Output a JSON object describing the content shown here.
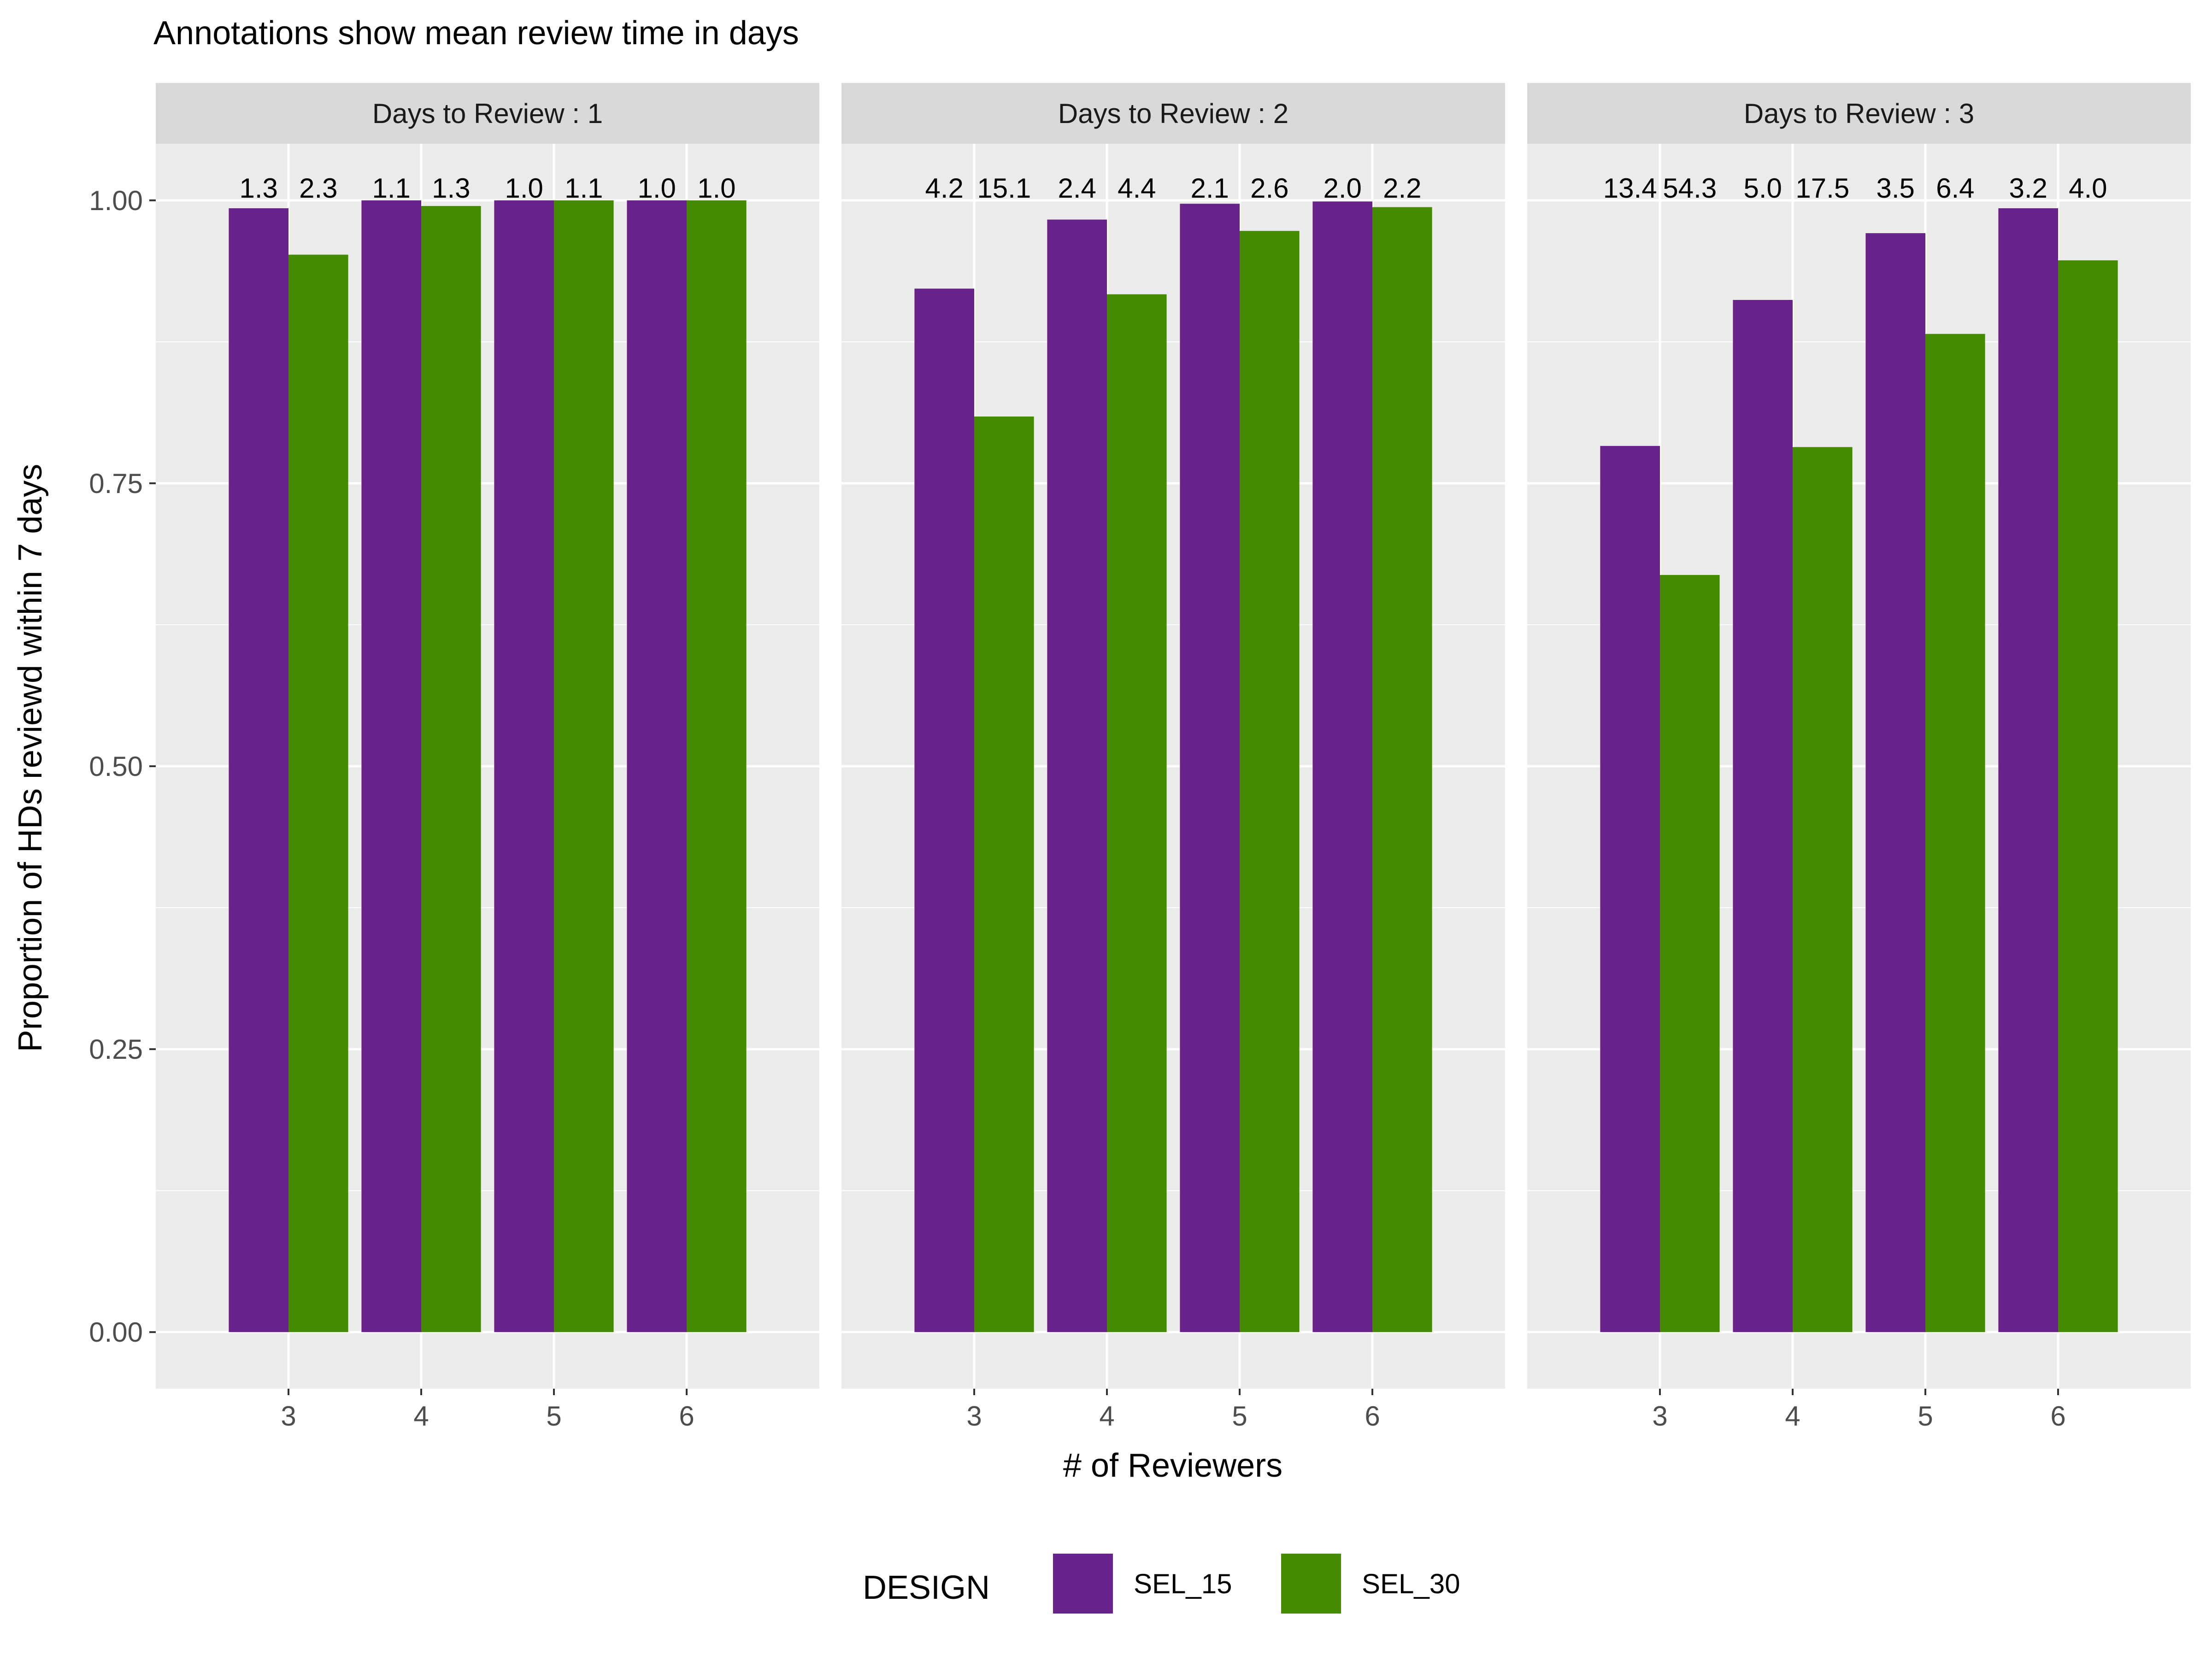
{
  "chart_data": {
    "type": "bar",
    "title": "Annotations show mean review time in days",
    "xlabel": "# of Reviewers",
    "ylabel": "Proportion of HDs reviewd within 7 days",
    "ylim": [
      -0.05,
      1.05
    ],
    "yticks": [
      0.0,
      0.25,
      0.5,
      0.75,
      1.0
    ],
    "ytick_labels": [
      "0.00",
      "0.25",
      "0.50",
      "0.75",
      "1.00"
    ],
    "categories": [
      "3",
      "4",
      "5",
      "6"
    ],
    "legend": {
      "title": "DESIGN",
      "position": "bottom",
      "entries": [
        {
          "name": "SEL_15",
          "color": "#68228b"
        },
        {
          "name": "SEL_30",
          "color": "#458b00"
        }
      ]
    },
    "panels": [
      {
        "strip": "Days to Review : 1",
        "series": [
          {
            "name": "SEL_15",
            "values": [
              0.993,
              1.0,
              1.0,
              1.0
            ],
            "annotations": [
              "1.3",
              "1.1",
              "1.0",
              "1.0"
            ]
          },
          {
            "name": "SEL_30",
            "values": [
              0.952,
              0.995,
              1.0,
              1.0
            ],
            "annotations": [
              "2.3",
              "1.3",
              "1.1",
              "1.0"
            ]
          }
        ]
      },
      {
        "strip": "Days to Review : 2",
        "series": [
          {
            "name": "SEL_15",
            "values": [
              0.922,
              0.983,
              0.997,
              0.999
            ],
            "annotations": [
              "4.2",
              "2.4",
              "2.1",
              "2.0"
            ]
          },
          {
            "name": "SEL_30",
            "values": [
              0.809,
              0.917,
              0.973,
              0.994
            ],
            "annotations": [
              "15.1",
              "4.4",
              "2.6",
              "2.2"
            ]
          }
        ]
      },
      {
        "strip": "Days to Review : 3",
        "series": [
          {
            "name": "SEL_15",
            "values": [
              0.783,
              0.912,
              0.971,
              0.993
            ],
            "annotations": [
              "13.4",
              "5.0",
              "3.5",
              "3.2"
            ]
          },
          {
            "name": "SEL_30",
            "values": [
              0.669,
              0.782,
              0.882,
              0.947
            ],
            "annotations": [
              "54.3",
              "17.5",
              "6.4",
              "4.0"
            ]
          }
        ]
      }
    ]
  }
}
